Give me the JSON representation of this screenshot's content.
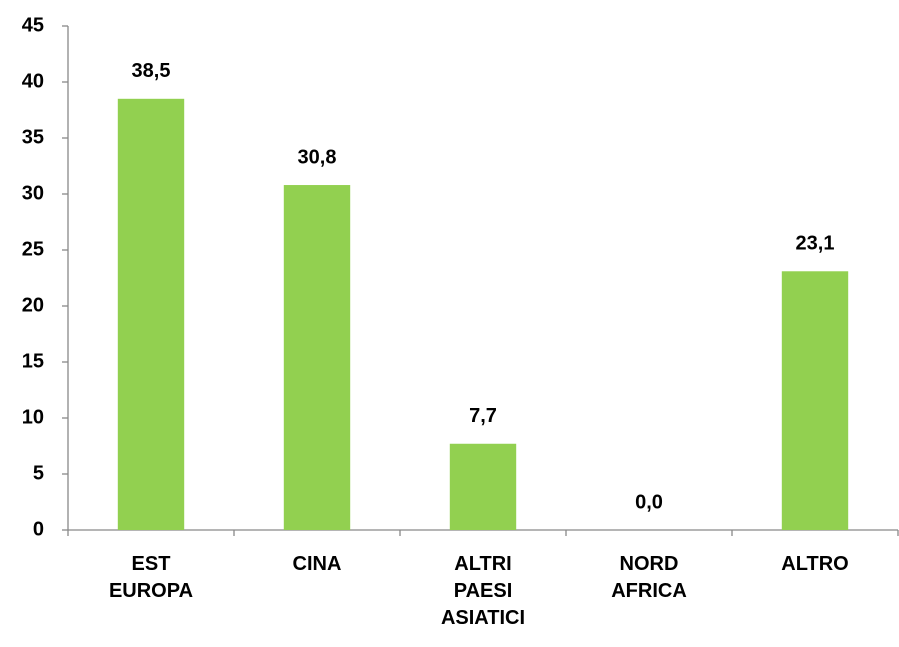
{
  "chart_data": {
    "type": "bar",
    "categories": [
      "EST EUROPA",
      "CINA",
      "ALTRI PAESI ASIATICI",
      "NORD AFRICA",
      "ALTRO"
    ],
    "values": [
      38.5,
      30.8,
      7.7,
      0.0,
      23.1
    ],
    "value_labels": [
      "38,5",
      "30,8",
      "7,7",
      "0,0",
      "23,1"
    ],
    "color": "#92d050",
    "ylim": [
      0,
      45
    ],
    "yticks": [
      0,
      5,
      10,
      15,
      20,
      25,
      30,
      35,
      40,
      45
    ],
    "grid": false
  }
}
